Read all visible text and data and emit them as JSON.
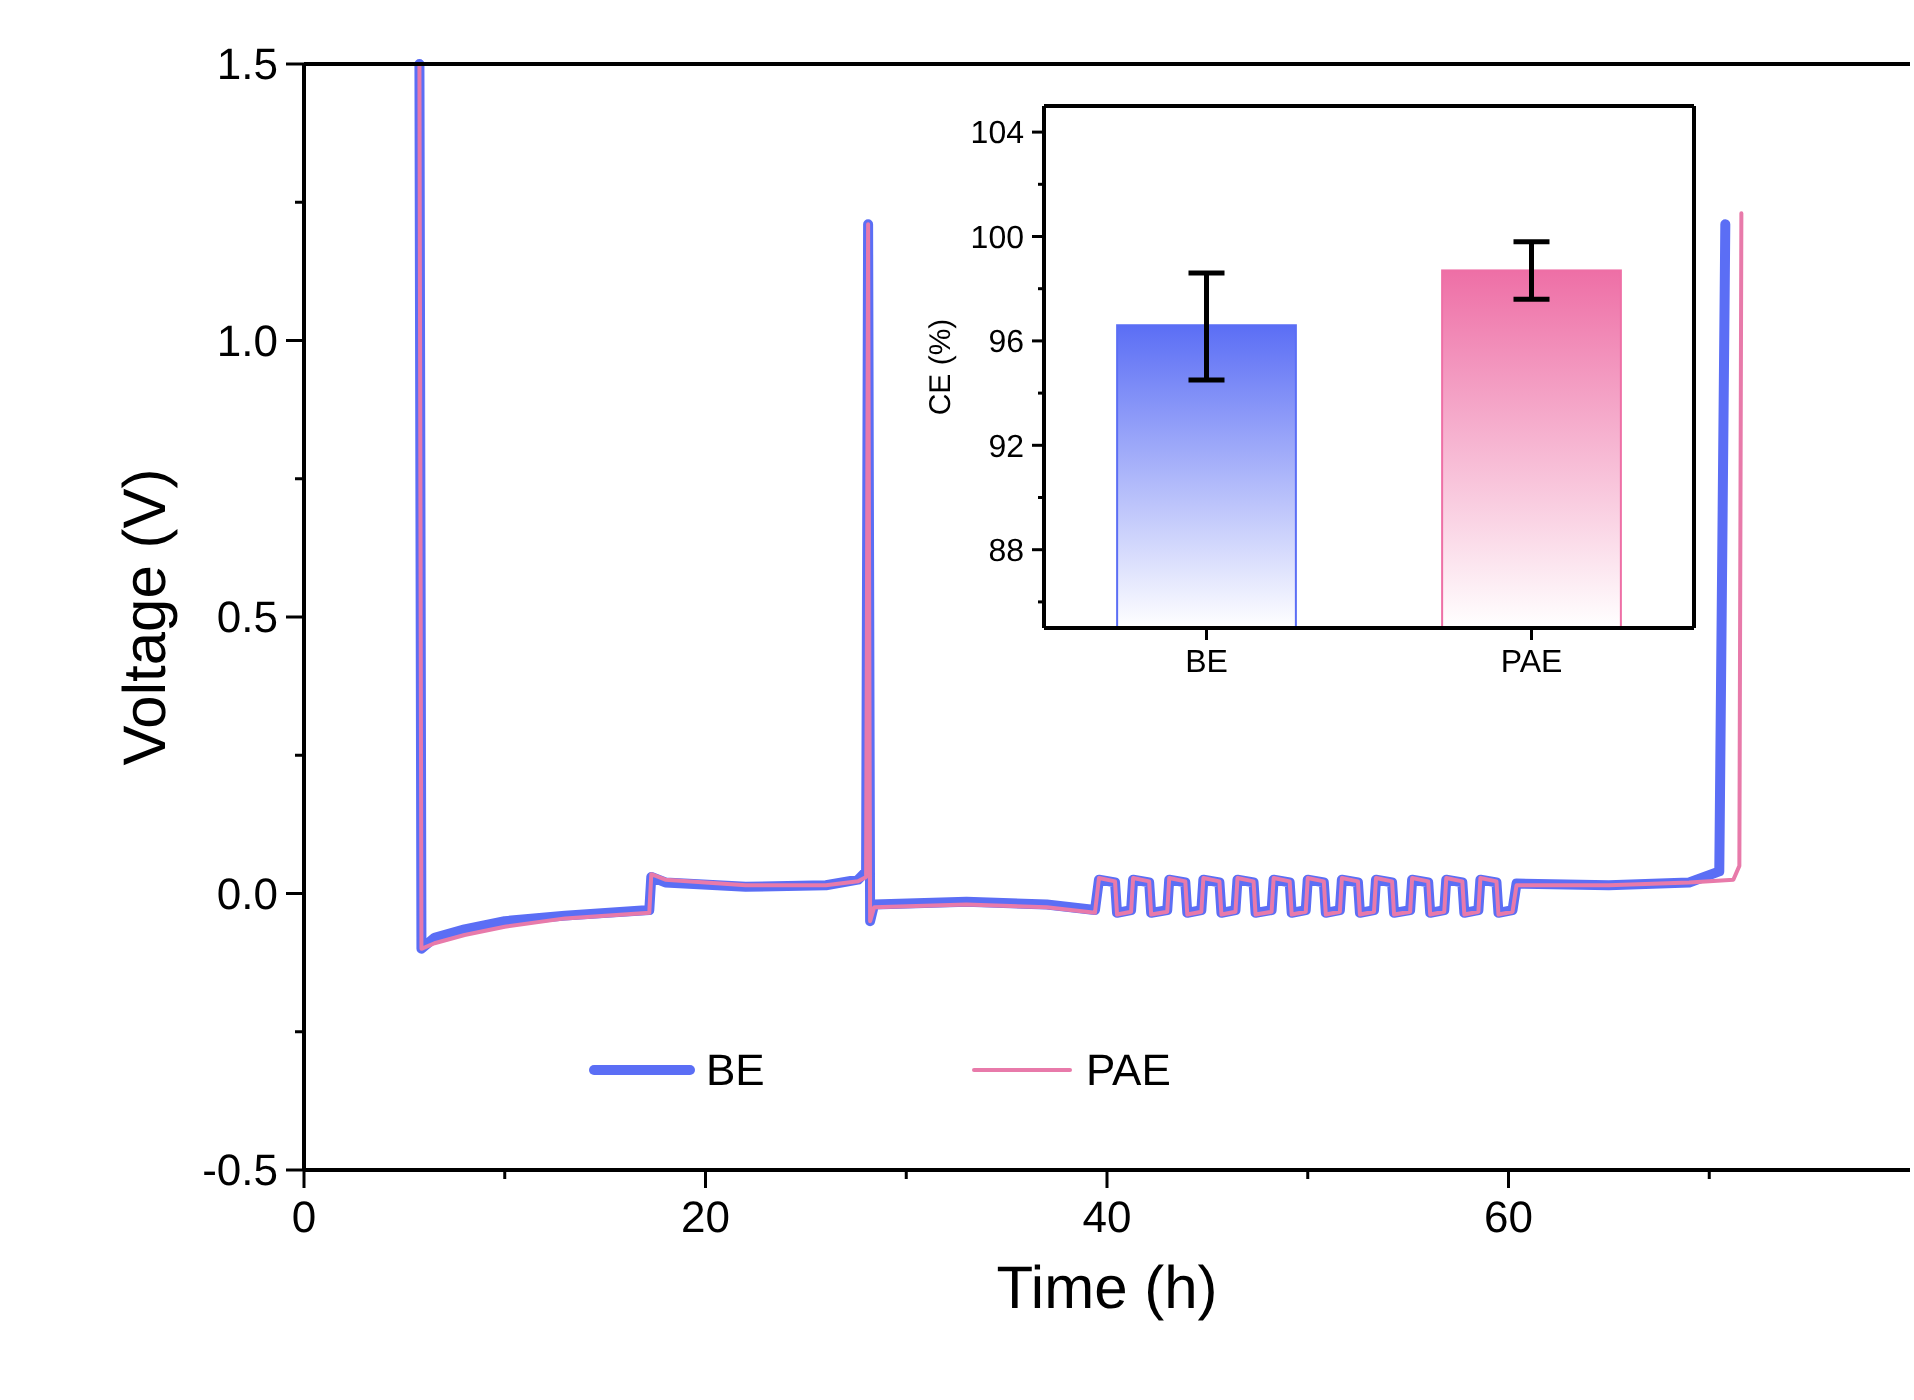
{
  "chart_data": [
    {
      "type": "line",
      "xlabel": "Time (h)",
      "ylabel": "Voltage (V)",
      "xlim": [
        0,
        80
      ],
      "xticks": [
        0,
        {
          "value": 10,
          "label": null
        },
        20,
        {
          "value": 30,
          "label": null
        },
        40,
        {
          "value": 50,
          "label": null
        },
        60,
        {
          "value": 70,
          "label": null
        }
      ],
      "ylim": [
        -0.5,
        1.5
      ],
      "yticks": [
        {
          "value": -0.5,
          "label": "-0.5"
        },
        {
          "value": -0.25,
          "label": null
        },
        {
          "value": 0,
          "label": "0.0"
        },
        {
          "value": 0.25,
          "label": null
        },
        {
          "value": 0.5,
          "label": "0.5"
        },
        {
          "value": 0.75,
          "label": null
        },
        {
          "value": 1,
          "label": "1.0"
        },
        {
          "value": 1.25,
          "label": null
        },
        {
          "value": 1.5,
          "label": "1.5"
        }
      ],
      "legend": "bottom left",
      "grid": false,
      "series": [
        {
          "name": "BE",
          "color": "#5b6ef5",
          "x": [
            5.75,
            5.85,
            6.5,
            8,
            10,
            13,
            17.2,
            17.3,
            18,
            22,
            26,
            27.6,
            28.0,
            28.1,
            28.2,
            28.4,
            33,
            37,
            39.4,
            39.6,
            40.4,
            40.5,
            41.2,
            41.3,
            42.1,
            42.2,
            43.0,
            43.1,
            43.9,
            44.0,
            44.7,
            44.8,
            45.6,
            45.7,
            46.4,
            46.5,
            47.3,
            47.4,
            48.2,
            48.3,
            49.1,
            49.2,
            49.9,
            50.0,
            50.8,
            50.9,
            51.6,
            51.7,
            52.5,
            52.6,
            53.3,
            53.4,
            54.2,
            54.3,
            55.1,
            55.2,
            56.0,
            56.1,
            56.8,
            56.9,
            57.7,
            57.8,
            58.5,
            58.6,
            59.4,
            59.5,
            60.2,
            60.4,
            65,
            69,
            70.5,
            70.8
          ],
          "values": [
            1.5,
            -0.1,
            -0.08,
            -0.065,
            -0.05,
            -0.04,
            -0.03,
            0.03,
            0.02,
            0.012,
            0.015,
            0.025,
            0.04,
            1.21,
            -0.05,
            -0.02,
            -0.015,
            -0.02,
            -0.03,
            0.025,
            0.02,
            -0.035,
            -0.03,
            0.025,
            0.02,
            -0.035,
            -0.03,
            0.025,
            0.02,
            -0.035,
            -0.03,
            0.025,
            0.02,
            -0.035,
            -0.03,
            0.025,
            0.02,
            -0.035,
            -0.03,
            0.025,
            0.02,
            -0.035,
            -0.03,
            0.025,
            0.02,
            -0.035,
            -0.03,
            0.025,
            0.02,
            -0.035,
            -0.03,
            0.025,
            0.02,
            -0.035,
            -0.03,
            0.025,
            0.02,
            -0.035,
            -0.03,
            0.025,
            0.02,
            -0.035,
            -0.03,
            0.025,
            0.02,
            -0.035,
            -0.03,
            0.018,
            0.015,
            0.02,
            0.04,
            1.21
          ]
        },
        {
          "name": "PAE",
          "color": "#e87aaa",
          "x": [
            5.75,
            5.85,
            6.5,
            8,
            10,
            13,
            17.2,
            17.3,
            18,
            22,
            26,
            27.6,
            28.0,
            28.1,
            28.2,
            28.4,
            33,
            37,
            39.4,
            39.6,
            40.4,
            40.5,
            41.2,
            41.3,
            42.1,
            42.2,
            43.0,
            43.1,
            43.9,
            44.0,
            44.7,
            44.8,
            45.6,
            45.7,
            46.4,
            46.5,
            47.3,
            47.4,
            48.2,
            48.3,
            49.1,
            49.2,
            49.9,
            50.0,
            50.8,
            50.9,
            51.6,
            51.7,
            52.5,
            52.6,
            53.3,
            53.4,
            54.2,
            54.3,
            55.1,
            55.2,
            56.0,
            56.1,
            56.8,
            56.9,
            57.7,
            57.8,
            58.5,
            58.6,
            59.4,
            59.5,
            60.2,
            60.4,
            65,
            69,
            71.2,
            71.5,
            71.6
          ],
          "values": [
            1.5,
            -0.1,
            -0.09,
            -0.075,
            -0.06,
            -0.045,
            -0.035,
            0.035,
            0.025,
            0.015,
            0.015,
            0.022,
            0.03,
            1.21,
            -0.05,
            -0.025,
            -0.02,
            -0.025,
            -0.035,
            0.028,
            0.022,
            -0.038,
            -0.033,
            0.028,
            0.022,
            -0.038,
            -0.033,
            0.028,
            0.022,
            -0.038,
            -0.033,
            0.028,
            0.022,
            -0.038,
            -0.033,
            0.028,
            0.022,
            -0.038,
            -0.033,
            0.028,
            0.022,
            -0.038,
            -0.033,
            0.028,
            0.022,
            -0.038,
            -0.033,
            0.028,
            0.022,
            -0.038,
            -0.033,
            0.028,
            0.022,
            -0.038,
            -0.033,
            0.028,
            0.022,
            -0.038,
            -0.033,
            0.028,
            0.022,
            -0.038,
            -0.033,
            0.028,
            0.022,
            -0.038,
            -0.033,
            0.015,
            0.015,
            0.02,
            0.025,
            0.05,
            1.23
          ]
        }
      ]
    },
    {
      "type": "bar",
      "ylabel": "CE (%)",
      "categories": [
        "BE",
        "PAE"
      ],
      "values": [
        96.6,
        98.7
      ],
      "colors": [
        "#5b6ef5",
        "#ee6fa6"
      ],
      "errors": [
        [
          94.5,
          98.6
        ],
        [
          97.6,
          99.8
        ]
      ],
      "ylim": [
        85,
        105
      ],
      "yticks": [
        {
          "value": 86,
          "label": null
        },
        88,
        {
          "value": 90,
          "label": null
        },
        92,
        {
          "value": 94,
          "label": null
        },
        96,
        {
          "value": 98,
          "label": null
        },
        100,
        {
          "value": 102,
          "label": null
        },
        104
      ]
    }
  ]
}
